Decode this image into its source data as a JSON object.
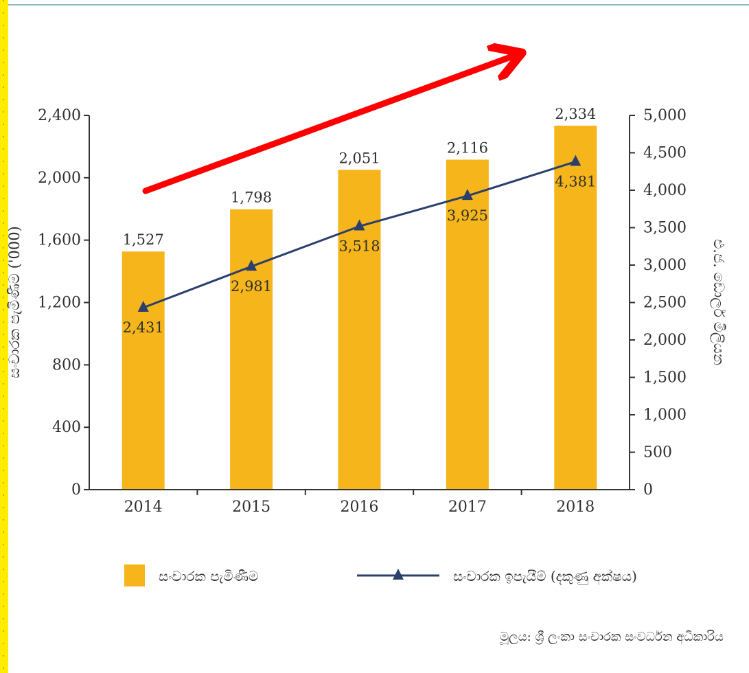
{
  "chart_data": {
    "type": "bar",
    "categories": [
      "2014",
      "2015",
      "2016",
      "2017",
      "2018"
    ],
    "series": [
      {
        "name": "සංචාරක පැමිණීම",
        "type": "bar",
        "axis": "left",
        "values": [
          1527,
          1798,
          2051,
          2116,
          2334
        ],
        "labels": [
          "1,527",
          "1,798",
          "2,051",
          "2,116",
          "2,334"
        ],
        "color": "#f5b51b"
      },
      {
        "name": "සංචාරක ඉපැයීම් (දකුණු අක්ෂය)",
        "type": "line",
        "axis": "right",
        "marker": "triangle",
        "values": [
          2431,
          2981,
          3518,
          3925,
          4381
        ],
        "labels": [
          "2,431",
          "2,981",
          "3,518",
          "3,925",
          "4,381"
        ],
        "color": "#2b3f6c"
      }
    ],
    "left_axis": {
      "label": "සංචාරක පැමිණීම ('000)",
      "ylim": [
        0,
        2400
      ],
      "ticks": [
        0,
        400,
        800,
        1200,
        1600,
        2000,
        2400
      ],
      "tick_labels": [
        "0",
        "400",
        "800",
        "1,200",
        "1,600",
        "2,000",
        "2,400"
      ]
    },
    "right_axis": {
      "label": "එ.ජ. ඩොලර් මිලියන",
      "ylim": [
        0,
        5000
      ],
      "ticks": [
        0,
        500,
        1000,
        1500,
        2000,
        2500,
        3000,
        3500,
        4000,
        4500,
        5000
      ],
      "tick_labels": [
        "0",
        "500",
        "1,000",
        "1,500",
        "2,000",
        "2,500",
        "3,000",
        "3,500",
        "4,000",
        "4,500",
        "5,000"
      ]
    },
    "grid": false,
    "legend_position": "bottom",
    "annotations": [
      {
        "type": "arrow",
        "color": "#ff0000",
        "meaning": "upward trend"
      }
    ],
    "source": "මූලය: ශ්‍රී ලංකා සංචාරක සංවර්ධන අධිකාරිය"
  }
}
